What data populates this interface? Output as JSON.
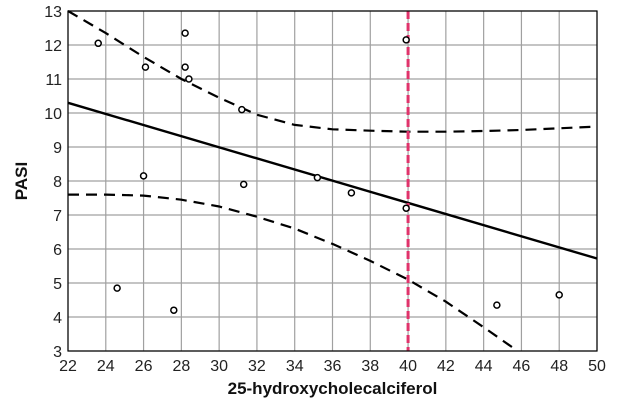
{
  "chart_data": {
    "type": "scatter",
    "title": "",
    "xlabel": "25-hydroxycholecalciferol",
    "ylabel": "PASI",
    "xlim": [
      22,
      50
    ],
    "ylim": [
      3,
      13
    ],
    "x_ticks": [
      22,
      24,
      26,
      28,
      30,
      32,
      34,
      36,
      38,
      40,
      42,
      44,
      46,
      48,
      50
    ],
    "y_ticks": [
      3,
      4,
      5,
      6,
      7,
      8,
      9,
      10,
      11,
      12,
      13
    ],
    "grid": true,
    "points": [
      {
        "x": 23.6,
        "y": 12.05
      },
      {
        "x": 24.6,
        "y": 4.85
      },
      {
        "x": 26.0,
        "y": 8.15
      },
      {
        "x": 26.1,
        "y": 11.35
      },
      {
        "x": 27.6,
        "y": 4.2
      },
      {
        "x": 28.2,
        "y": 12.35
      },
      {
        "x": 28.2,
        "y": 11.35
      },
      {
        "x": 28.4,
        "y": 11.0
      },
      {
        "x": 31.2,
        "y": 10.1
      },
      {
        "x": 31.3,
        "y": 7.9
      },
      {
        "x": 35.2,
        "y": 8.1
      },
      {
        "x": 37.0,
        "y": 7.65
      },
      {
        "x": 39.9,
        "y": 12.15
      },
      {
        "x": 39.9,
        "y": 7.2
      },
      {
        "x": 44.7,
        "y": 4.35
      },
      {
        "x": 48.0,
        "y": 4.65
      }
    ],
    "regression_line": {
      "x": [
        22,
        50
      ],
      "y": [
        10.3,
        5.72
      ]
    },
    "upper_band": {
      "x": [
        22,
        24,
        26,
        28,
        30,
        32,
        34,
        36,
        38,
        40,
        42,
        44,
        46,
        48,
        50
      ],
      "y": [
        13.0,
        12.35,
        11.65,
        11.0,
        10.45,
        9.95,
        9.65,
        9.52,
        9.48,
        9.45,
        9.45,
        9.47,
        9.5,
        9.55,
        9.6
      ]
    },
    "lower_band": {
      "x": [
        22,
        24,
        26,
        28,
        30,
        32,
        34,
        36,
        38,
        40,
        42,
        44,
        45.8
      ],
      "y": [
        7.6,
        7.6,
        7.57,
        7.45,
        7.25,
        6.95,
        6.6,
        6.15,
        5.65,
        5.1,
        4.45,
        3.7,
        3.0
      ]
    },
    "reference_line": {
      "x": 40,
      "color": "#e0336b"
    },
    "colors": {
      "regression": "#000000",
      "band": "#000000",
      "grid": "#a0a0a0",
      "points": "#000000",
      "reference": "#e0336b"
    }
  }
}
